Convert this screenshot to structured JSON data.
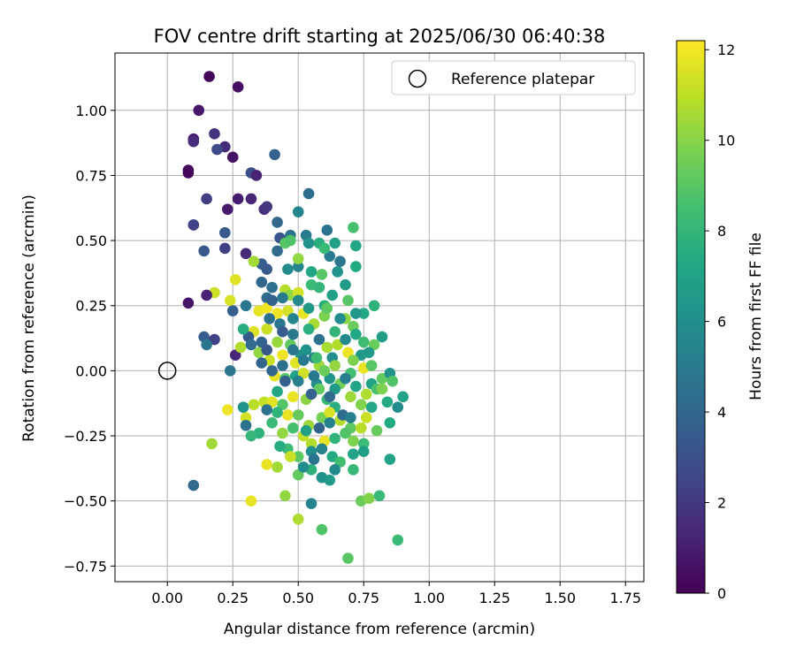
{
  "chart_data": {
    "type": "scatter",
    "title": "FOV centre drift starting at 2025/06/30 06:40:38",
    "xlabel": "Angular distance from reference (arcmin)",
    "ylabel": "Rotation from reference (arcmin)",
    "xlim": [
      -0.2,
      1.82
    ],
    "ylim": [
      -0.81,
      1.22
    ],
    "xticks": [
      "0.00",
      "0.25",
      "0.50",
      "0.75",
      "1.00",
      "1.25",
      "1.50",
      "1.75"
    ],
    "xtick_values": [
      0,
      0.25,
      0.5,
      0.75,
      1.0,
      1.25,
      1.5,
      1.75
    ],
    "yticks": [
      "−0.75",
      "−0.50",
      "−0.25",
      "0.00",
      "0.25",
      "0.50",
      "0.75",
      "1.00"
    ],
    "ytick_values": [
      -0.75,
      -0.5,
      -0.25,
      0,
      0.25,
      0.5,
      0.75,
      1.0
    ],
    "grid": true,
    "legend": {
      "position": "top-right",
      "entries": [
        {
          "label": "Reference platepar",
          "marker": "open-circle"
        }
      ]
    },
    "reference_point": {
      "x": 0.0,
      "y": 0.0
    },
    "colorbar": {
      "label": "Hours from first FF file",
      "range": [
        0,
        12.2
      ],
      "ticks": [
        "0",
        "2",
        "4",
        "6",
        "8",
        "10",
        "12"
      ],
      "tick_values": [
        0,
        2,
        4,
        6,
        8,
        10,
        12
      ],
      "colormap": "viridis"
    },
    "points": [
      [
        0.16,
        1.13,
        0.1
      ],
      [
        0.27,
        1.09,
        0.5
      ],
      [
        0.12,
        1.0,
        0.8
      ],
      [
        0.1,
        0.89,
        1.0
      ],
      [
        0.1,
        0.88,
        1.6
      ],
      [
        0.18,
        0.91,
        1.8
      ],
      [
        0.22,
        0.86,
        1.5
      ],
      [
        0.25,
        0.82,
        0.6
      ],
      [
        0.19,
        0.85,
        2.8
      ],
      [
        0.08,
        0.77,
        0.3
      ],
      [
        0.08,
        0.76,
        0.2
      ],
      [
        0.32,
        0.76,
        3.0
      ],
      [
        0.34,
        0.75,
        1.2
      ],
      [
        0.41,
        0.83,
        3.8
      ],
      [
        0.15,
        0.66,
        2.2
      ],
      [
        0.27,
        0.66,
        1.0
      ],
      [
        0.32,
        0.66,
        1.3
      ],
      [
        0.23,
        0.62,
        0.9
      ],
      [
        0.37,
        0.62,
        1.6
      ],
      [
        0.38,
        0.63,
        1.9
      ],
      [
        0.1,
        0.56,
        3.0
      ],
      [
        0.1,
        0.56,
        2.4
      ],
      [
        0.22,
        0.53,
        3.4
      ],
      [
        0.54,
        0.68,
        4.4
      ],
      [
        0.5,
        0.61,
        5.5
      ],
      [
        0.42,
        0.57,
        4.0
      ],
      [
        0.22,
        0.47,
        2.3
      ],
      [
        0.14,
        0.46,
        3.4
      ],
      [
        0.3,
        0.45,
        1.5
      ],
      [
        0.36,
        0.41,
        3.6
      ],
      [
        0.43,
        0.51,
        3.2
      ],
      [
        0.47,
        0.52,
        4.6
      ],
      [
        0.53,
        0.52,
        5.0
      ],
      [
        0.61,
        0.54,
        4.7
      ],
      [
        0.71,
        0.55,
        8.6
      ],
      [
        0.45,
        0.49,
        9.0
      ],
      [
        0.42,
        0.46,
        4.2
      ],
      [
        0.38,
        0.39,
        3.4
      ],
      [
        0.33,
        0.42,
        10.5
      ],
      [
        0.26,
        0.35,
        11.6
      ],
      [
        0.18,
        0.3,
        11.2
      ],
      [
        0.15,
        0.29,
        1.2
      ],
      [
        0.08,
        0.26,
        0.7
      ],
      [
        0.38,
        0.28,
        4.2
      ],
      [
        0.45,
        0.31,
        10.8
      ],
      [
        0.47,
        0.29,
        10.2
      ],
      [
        0.5,
        0.3,
        11.4
      ],
      [
        0.55,
        0.33,
        8.2
      ],
      [
        0.6,
        0.25,
        7.6
      ],
      [
        0.63,
        0.29,
        6.9
      ],
      [
        0.69,
        0.27,
        9.0
      ],
      [
        0.75,
        0.22,
        7.4
      ],
      [
        0.79,
        0.25,
        7.8
      ],
      [
        0.24,
        0.27,
        11.5
      ],
      [
        0.25,
        0.23,
        3.6
      ],
      [
        0.3,
        0.25,
        4.8
      ],
      [
        0.35,
        0.23,
        11.8
      ],
      [
        0.38,
        0.24,
        12.0
      ],
      [
        0.42,
        0.22,
        11.9
      ],
      [
        0.46,
        0.23,
        11.4
      ],
      [
        0.52,
        0.22,
        11.8
      ],
      [
        0.56,
        0.18,
        10.6
      ],
      [
        0.6,
        0.21,
        9.8
      ],
      [
        0.68,
        0.2,
        10.1
      ],
      [
        0.71,
        0.17,
        9.4
      ],
      [
        0.75,
        0.11,
        8.4
      ],
      [
        0.82,
        0.13,
        6.8
      ],
      [
        0.14,
        0.13,
        3.6
      ],
      [
        0.18,
        0.12,
        2.4
      ],
      [
        0.15,
        0.1,
        4.8
      ],
      [
        0.26,
        0.06,
        1.4
      ],
      [
        0.28,
        0.09,
        10.8
      ],
      [
        0.33,
        0.15,
        11.6
      ],
      [
        0.38,
        0.16,
        11.2
      ],
      [
        0.42,
        0.11,
        10.3
      ],
      [
        0.47,
        0.1,
        9.2
      ],
      [
        0.51,
        0.06,
        6.3
      ],
      [
        0.56,
        0.05,
        5.2
      ],
      [
        0.61,
        0.09,
        10.6
      ],
      [
        0.65,
        0.1,
        10.8
      ],
      [
        0.69,
        0.07,
        11.9
      ],
      [
        0.74,
        0.06,
        6.5
      ],
      [
        0.79,
        0.1,
        9.4
      ],
      [
        0.35,
        0.07,
        10.2
      ],
      [
        0.39,
        0.04,
        11.2
      ],
      [
        0.44,
        0.06,
        11.9
      ],
      [
        0.49,
        0.03,
        11.6
      ],
      [
        0.53,
        0.08,
        6.1
      ],
      [
        0.58,
        0.02,
        10.4
      ],
      [
        0.63,
        0.05,
        6.0
      ],
      [
        0.24,
        0.0,
        4.8
      ],
      [
        0.41,
        -0.02,
        11.8
      ],
      [
        0.45,
        -0.03,
        9.0
      ],
      [
        0.49,
        -0.02,
        7.0
      ],
      [
        0.52,
        -0.01,
        11.3
      ],
      [
        0.57,
        -0.05,
        5.9
      ],
      [
        0.62,
        -0.03,
        6.4
      ],
      [
        0.66,
        -0.05,
        9.6
      ],
      [
        0.7,
        -0.01,
        8.5
      ],
      [
        0.75,
        0.01,
        11.8
      ],
      [
        0.78,
        -0.05,
        7.0
      ],
      [
        0.82,
        -0.03,
        9.2
      ],
      [
        0.85,
        -0.01,
        6.2
      ],
      [
        0.42,
        -0.08,
        7.1
      ],
      [
        0.44,
        -0.13,
        8.9
      ],
      [
        0.48,
        -0.1,
        11.8
      ],
      [
        0.53,
        -0.11,
        10.1
      ],
      [
        0.58,
        -0.07,
        9.2
      ],
      [
        0.61,
        -0.11,
        8.1
      ],
      [
        0.64,
        -0.14,
        7.6
      ],
      [
        0.7,
        -0.1,
        10.4
      ],
      [
        0.74,
        -0.13,
        9.9
      ],
      [
        0.76,
        -0.09,
        10.7
      ],
      [
        0.8,
        -0.07,
        8.7
      ],
      [
        0.84,
        -0.12,
        7.4
      ],
      [
        0.88,
        -0.14,
        5.8
      ],
      [
        0.9,
        -0.1,
        7.0
      ],
      [
        0.23,
        -0.15,
        11.9
      ],
      [
        0.3,
        -0.18,
        11.4
      ],
      [
        0.33,
        -0.13,
        10.9
      ],
      [
        0.37,
        -0.12,
        11.1
      ],
      [
        0.4,
        -0.12,
        11.6
      ],
      [
        0.46,
        -0.17,
        11.8
      ],
      [
        0.5,
        -0.17,
        9.3
      ],
      [
        0.54,
        -0.21,
        10.4
      ],
      [
        0.59,
        -0.18,
        9.6
      ],
      [
        0.62,
        -0.16,
        11.5
      ],
      [
        0.66,
        -0.19,
        10.8
      ],
      [
        0.7,
        -0.22,
        9.1
      ],
      [
        0.74,
        -0.22,
        10.9
      ],
      [
        0.76,
        -0.18,
        11.2
      ],
      [
        0.8,
        -0.23,
        9.3
      ],
      [
        0.85,
        -0.2,
        7.4
      ],
      [
        0.3,
        -0.21,
        4.7
      ],
      [
        0.35,
        -0.24,
        7.8
      ],
      [
        0.4,
        -0.2,
        8.2
      ],
      [
        0.44,
        -0.24,
        10.2
      ],
      [
        0.52,
        -0.25,
        11.1
      ],
      [
        0.55,
        -0.28,
        10.8
      ],
      [
        0.6,
        -0.27,
        11.8
      ],
      [
        0.64,
        -0.26,
        7.9
      ],
      [
        0.68,
        -0.24,
        8.8
      ],
      [
        0.71,
        -0.27,
        9.8
      ],
      [
        0.75,
        -0.28,
        8.3
      ],
      [
        0.17,
        -0.28,
        10.5
      ],
      [
        0.46,
        -0.3,
        8.3
      ],
      [
        0.5,
        -0.33,
        9.1
      ],
      [
        0.55,
        -0.31,
        6.0
      ],
      [
        0.59,
        -0.3,
        5.4
      ],
      [
        0.63,
        -0.33,
        7.4
      ],
      [
        0.66,
        -0.35,
        8.4
      ],
      [
        0.71,
        -0.32,
        7.0
      ],
      [
        0.75,
        -0.31,
        6.8
      ],
      [
        0.38,
        -0.36,
        11.8
      ],
      [
        0.42,
        -0.37,
        10.5
      ],
      [
        0.47,
        -0.33,
        11.2
      ],
      [
        0.5,
        -0.4,
        9.2
      ],
      [
        0.55,
        -0.38,
        7.8
      ],
      [
        0.59,
        -0.41,
        6.1
      ],
      [
        0.64,
        -0.38,
        5.8
      ],
      [
        0.71,
        -0.38,
        8.1
      ],
      [
        0.85,
        -0.34,
        7.0
      ],
      [
        0.1,
        -0.44,
        4.2
      ],
      [
        0.32,
        -0.5,
        11.8
      ],
      [
        0.45,
        -0.48,
        10.2
      ],
      [
        0.55,
        -0.51,
        5.4
      ],
      [
        0.74,
        -0.5,
        9.4
      ],
      [
        0.77,
        -0.49,
        9.9
      ],
      [
        0.81,
        -0.48,
        8.2
      ],
      [
        0.5,
        -0.57,
        10.7
      ],
      [
        0.59,
        -0.61,
        8.8
      ],
      [
        0.88,
        -0.65,
        8.2
      ],
      [
        0.69,
        -0.72,
        9.0
      ],
      [
        0.58,
        0.49,
        7.6
      ],
      [
        0.64,
        0.49,
        6.9
      ],
      [
        0.72,
        0.48,
        7.2
      ],
      [
        0.62,
        0.44,
        5.0
      ],
      [
        0.66,
        0.42,
        4.8
      ],
      [
        0.6,
        0.47,
        8.2
      ],
      [
        0.72,
        0.4,
        7.4
      ],
      [
        0.68,
        0.33,
        6.7
      ],
      [
        0.5,
        0.4,
        5.6
      ],
      [
        0.55,
        0.38,
        7.2
      ],
      [
        0.59,
        0.37,
        9.0
      ],
      [
        0.46,
        0.39,
        5.8
      ],
      [
        0.4,
        0.32,
        4.4
      ],
      [
        0.36,
        0.34,
        4.0
      ],
      [
        0.44,
        0.28,
        5.0
      ],
      [
        0.4,
        0.27,
        3.8
      ],
      [
        0.5,
        0.43,
        10.2
      ],
      [
        0.47,
        0.5,
        8.8
      ],
      [
        0.54,
        0.49,
        6.2
      ],
      [
        0.65,
        0.38,
        6.3
      ],
      [
        0.58,
        0.32,
        8.0
      ],
      [
        0.48,
        0.2,
        5.6
      ],
      [
        0.43,
        0.18,
        4.8
      ],
      [
        0.39,
        0.2,
        4.5
      ],
      [
        0.54,
        0.16,
        7.7
      ],
      [
        0.64,
        0.15,
        7.9
      ],
      [
        0.72,
        0.14,
        7.3
      ],
      [
        0.77,
        0.07,
        6.6
      ],
      [
        0.31,
        0.13,
        3.5
      ],
      [
        0.36,
        0.11,
        3.9
      ],
      [
        0.29,
        0.16,
        7.5
      ],
      [
        0.44,
        0.15,
        3.5
      ],
      [
        0.48,
        0.14,
        4.9
      ],
      [
        0.58,
        0.12,
        4.6
      ],
      [
        0.68,
        0.12,
        5.7
      ],
      [
        0.32,
        0.1,
        4.3
      ],
      [
        0.38,
        0.08,
        3.4
      ],
      [
        0.44,
        0.02,
        4.5
      ],
      [
        0.48,
        0.08,
        4.9
      ],
      [
        0.52,
        0.04,
        5.0
      ],
      [
        0.36,
        0.03,
        4.0
      ],
      [
        0.4,
        0.0,
        4.0
      ],
      [
        0.45,
        -0.04,
        3.7
      ],
      [
        0.5,
        -0.04,
        5.2
      ],
      [
        0.56,
        -0.02,
        4.9
      ],
      [
        0.64,
        -0.07,
        6.5
      ],
      [
        0.68,
        -0.03,
        5.1
      ],
      [
        0.72,
        -0.06,
        7.2
      ],
      [
        0.62,
        -0.1,
        4.2
      ],
      [
        0.55,
        -0.09,
        3.8
      ],
      [
        0.67,
        -0.17,
        4.3
      ],
      [
        0.78,
        -0.14,
        7.2
      ],
      [
        0.58,
        -0.22,
        3.9
      ],
      [
        0.62,
        -0.2,
        5.4
      ],
      [
        0.7,
        -0.18,
        5.2
      ],
      [
        0.38,
        -0.15,
        4.6
      ],
      [
        0.42,
        -0.16,
        7.8
      ],
      [
        0.48,
        -0.22,
        8.6
      ],
      [
        0.53,
        -0.23,
        6.9
      ],
      [
        0.56,
        -0.34,
        4.7
      ],
      [
        0.52,
        -0.37,
        5.9
      ],
      [
        0.62,
        -0.42,
        6.6
      ],
      [
        0.43,
        -0.29,
        7.5
      ],
      [
        0.32,
        -0.25,
        8.0
      ],
      [
        0.29,
        -0.14,
        6.3
      ],
      [
        0.66,
        0.2,
        5.9
      ],
      [
        0.72,
        0.22,
        6.4
      ],
      [
        0.61,
        0.24,
        9.1
      ],
      [
        0.54,
        0.24,
        6.5
      ],
      [
        0.5,
        0.27,
        5.7
      ],
      [
        0.57,
        0.05,
        8.3
      ],
      [
        0.6,
        0.0,
        9.4
      ],
      [
        0.64,
        0.02,
        10.2
      ],
      [
        0.71,
        0.04,
        9.8
      ],
      [
        0.78,
        0.02,
        9.0
      ],
      [
        0.82,
        -0.07,
        9.8
      ],
      [
        0.86,
        -0.04,
        8.8
      ]
    ]
  }
}
